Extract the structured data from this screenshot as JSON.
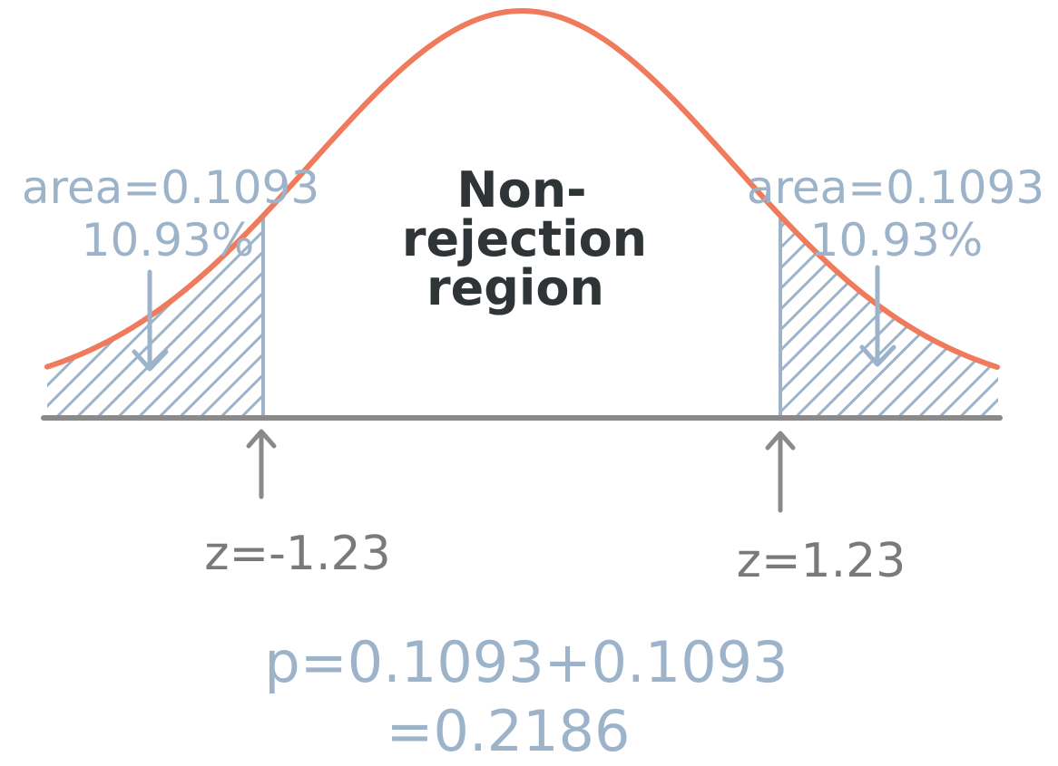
{
  "colors": {
    "curve": "#f07a5c",
    "axis": "#8a8a8a",
    "tail": "#9cb3ca",
    "arrow_gray": "#8a8a8a",
    "center_text": "#2f3437"
  },
  "distribution": {
    "type": "standard-normal",
    "z_critical_left": -1.23,
    "z_critical_right": 1.23,
    "shaded": "two-tailed"
  },
  "center_label": {
    "line1": "Non-",
    "line2": "rejection",
    "line3": "region"
  },
  "left_tail": {
    "area_text": "area=0.1093",
    "percent_text": "10.93%",
    "z_text": "z=-1.23"
  },
  "right_tail": {
    "area_text": "area=0.1093",
    "percent_text": "10.93%",
    "z_text": "z=1.23"
  },
  "p_value": {
    "line1": "p=0.1093+0.1093",
    "line2": "=0.2186"
  }
}
